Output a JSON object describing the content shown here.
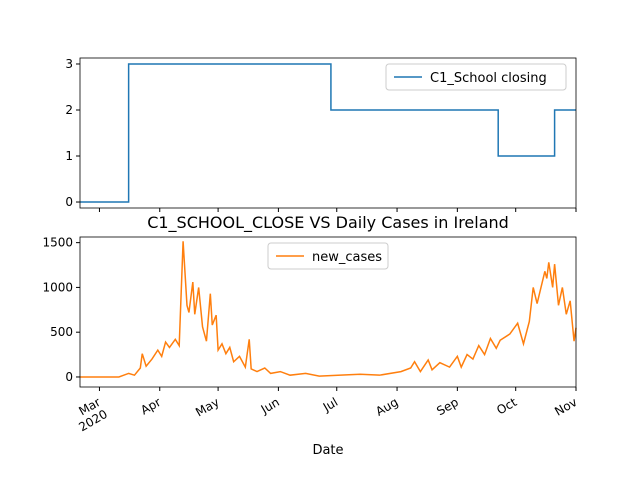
{
  "chart_data": [
    {
      "type": "line",
      "series": [
        {
          "name": "C1_School closing",
          "color": "#1f77b4",
          "x": [
            -10,
            15,
            15,
            119,
            119,
            205,
            205,
            234,
            234,
            245
          ],
          "values": [
            0,
            0,
            3,
            3,
            2,
            2,
            1,
            1,
            2,
            2
          ]
        }
      ],
      "xlim": [
        -10,
        245
      ],
      "ylim": [
        -0.13,
        3.13
      ],
      "xticks": [
        0,
        31,
        61,
        92,
        122,
        153,
        184,
        214,
        245
      ],
      "yticks": [
        0,
        1,
        2,
        3
      ],
      "legend": "upper right"
    },
    {
      "type": "line",
      "title": "C1_SCHOOL_CLOSE VS Daily Cases in Ireland",
      "xlabel": "Date",
      "series": [
        {
          "name": "new_cases",
          "color": "#ff7f0e",
          "x": [
            -10,
            10,
            15,
            18,
            21,
            22,
            24,
            27,
            30,
            32,
            34,
            36,
            39,
            41,
            43,
            45,
            46,
            48,
            49,
            51,
            53,
            55,
            57,
            58,
            60,
            61,
            63,
            65,
            67,
            69,
            72,
            75,
            77,
            78,
            81,
            85,
            88,
            93,
            98,
            106,
            113,
            124,
            134,
            144,
            155,
            160,
            162,
            165,
            169,
            171,
            175,
            180,
            184,
            186,
            189,
            192,
            195,
            198,
            201,
            204,
            206,
            211,
            215,
            218,
            221,
            223,
            225,
            227,
            229,
            230,
            231,
            233,
            234,
            236,
            238,
            240,
            242,
            244,
            245
          ],
          "values": [
            0,
            0,
            40,
            20,
            100,
            260,
            120,
            200,
            300,
            230,
            390,
            330,
            420,
            350,
            1515,
            800,
            720,
            1060,
            700,
            1000,
            560,
            400,
            930,
            580,
            690,
            300,
            370,
            260,
            330,
            170,
            230,
            110,
            420,
            90,
            60,
            100,
            40,
            60,
            20,
            40,
            10,
            20,
            30,
            20,
            60,
            100,
            170,
            60,
            190,
            80,
            160,
            110,
            230,
            110,
            250,
            200,
            350,
            250,
            430,
            320,
            410,
            480,
            600,
            370,
            620,
            1000,
            820,
            1000,
            1180,
            1100,
            1280,
            1000,
            1260,
            800,
            1000,
            700,
            850,
            400,
            550
          ]
        }
      ],
      "xlim": [
        -10,
        245
      ],
      "ylim": [
        -112,
        1563
      ],
      "xticks": [
        {
          "value": 0,
          "label": "Mar\n2020"
        },
        {
          "value": 31,
          "label": "Apr"
        },
        {
          "value": 61,
          "label": "May"
        },
        {
          "value": 92,
          "label": "Jun"
        },
        {
          "value": 122,
          "label": "Jul"
        },
        {
          "value": 153,
          "label": "Aug"
        },
        {
          "value": 184,
          "label": "Sep"
        },
        {
          "value": 214,
          "label": "Oct"
        },
        {
          "value": 245,
          "label": "Nov"
        }
      ],
      "yticks": [
        0,
        500,
        1000,
        1500
      ],
      "legend": "upper center"
    }
  ]
}
